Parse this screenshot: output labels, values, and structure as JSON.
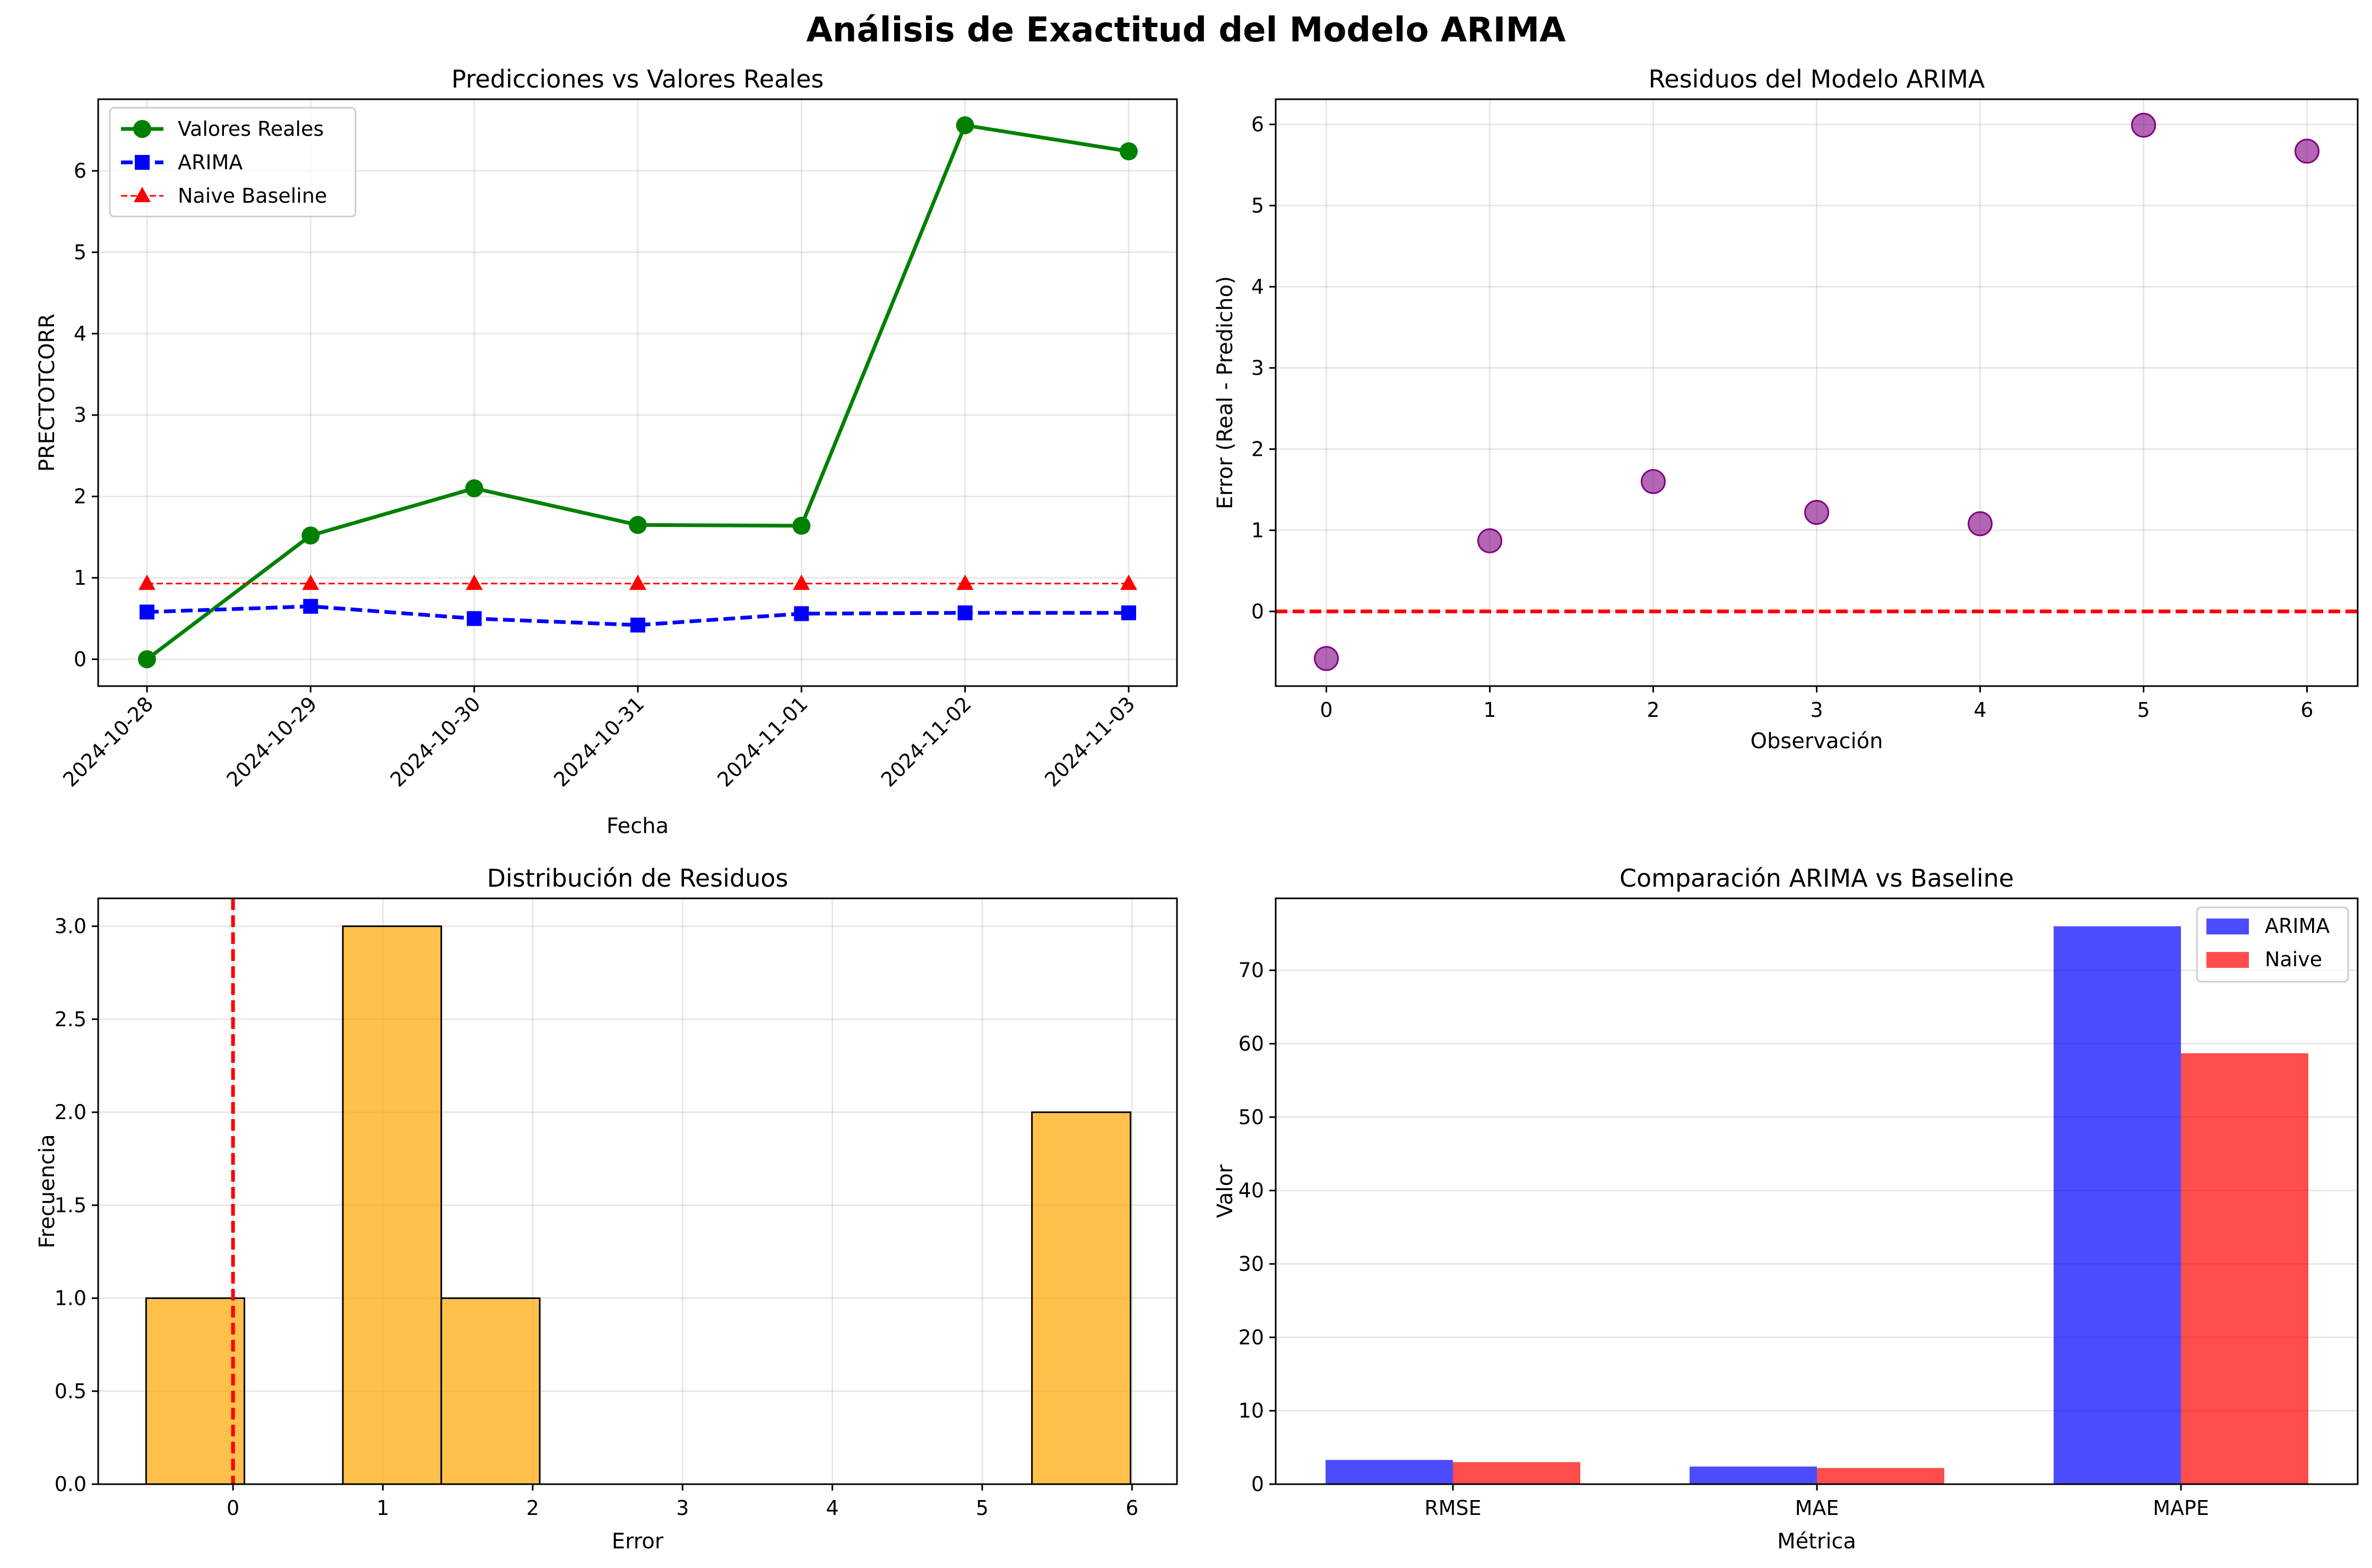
{
  "figure": {
    "title": "Análisis de Exactitud del Modelo ARIMA"
  },
  "chart_data": [
    {
      "type": "line",
      "title": "Predicciones vs Valores Reales",
      "xlabel": "Fecha",
      "ylabel": "PRECTOTCORR",
      "categories": [
        "2024-10-28",
        "2024-10-29",
        "2024-10-30",
        "2024-10-31",
        "2024-11-01",
        "2024-11-02",
        "2024-11-03"
      ],
      "ylim": [
        -0.33,
        6.88
      ],
      "yticks": [
        0,
        1,
        2,
        3,
        4,
        5,
        6
      ],
      "grid": true,
      "legend": "upper-left",
      "series": [
        {
          "name": "Valores Reales",
          "values": [
            0.0,
            1.52,
            2.1,
            1.65,
            1.64,
            6.56,
            6.24
          ],
          "color": "#008000",
          "marker": "circle",
          "dash": "solid"
        },
        {
          "name": "ARIMA",
          "values": [
            0.58,
            0.65,
            0.5,
            0.42,
            0.56,
            0.57,
            0.57
          ],
          "color": "#0000ff",
          "marker": "square",
          "dash": "dashed"
        },
        {
          "name": "Naive Baseline",
          "values": [
            0.93,
            0.93,
            0.93,
            0.93,
            0.93,
            0.93,
            0.93
          ],
          "color": "#ff0000",
          "marker": "triangle",
          "dash": "dashed-thin"
        }
      ]
    },
    {
      "type": "scatter",
      "title": "Residuos del Modelo ARIMA",
      "xlabel": "Observación",
      "ylabel": "Error (Real - Predicho)",
      "xlim": [
        -0.31,
        6.31
      ],
      "ylim": [
        -0.92,
        6.31
      ],
      "xticks": [
        0,
        1,
        2,
        3,
        4,
        5,
        6
      ],
      "yticks": [
        0,
        1,
        2,
        3,
        4,
        5,
        6
      ],
      "grid": true,
      "points": {
        "x": [
          0,
          1,
          2,
          3,
          4,
          5,
          6
        ],
        "y": [
          -0.58,
          0.87,
          1.6,
          1.22,
          1.08,
          5.99,
          5.67
        ],
        "color": "#800080"
      },
      "reference_line": {
        "y": 0,
        "color": "#ff0000",
        "style": "dashed"
      }
    },
    {
      "type": "histogram",
      "title": "Distribución de Residuos",
      "xlabel": "Error",
      "ylabel": "Frecuencia",
      "xlim": [
        -0.9,
        6.3
      ],
      "ylim": [
        0,
        3.15
      ],
      "xticks": [
        0,
        1,
        2,
        3,
        4,
        5,
        6
      ],
      "yticks": [
        0.0,
        0.5,
        1.0,
        1.5,
        2.0,
        2.5,
        3.0
      ],
      "grid": true,
      "bins": [
        {
          "start": -0.58,
          "end": 0.076,
          "count": 1
        },
        {
          "start": 0.076,
          "end": 0.733,
          "count": 0
        },
        {
          "start": 0.733,
          "end": 1.39,
          "count": 3
        },
        {
          "start": 1.39,
          "end": 2.047,
          "count": 1
        },
        {
          "start": 2.047,
          "end": 2.704,
          "count": 0
        },
        {
          "start": 2.704,
          "end": 3.361,
          "count": 0
        },
        {
          "start": 3.361,
          "end": 4.018,
          "count": 0
        },
        {
          "start": 4.018,
          "end": 4.675,
          "count": 0
        },
        {
          "start": 4.675,
          "end": 5.332,
          "count": 0
        },
        {
          "start": 5.332,
          "end": 5.99,
          "count": 2
        }
      ],
      "bar_color": "#ffa500",
      "reference_line": {
        "x": 0,
        "color": "#ff0000",
        "style": "dashed"
      }
    },
    {
      "type": "bar",
      "title": "Comparación ARIMA vs Baseline",
      "xlabel": "Métrica",
      "ylabel": "Valor",
      "categories": [
        "RMSE",
        "MAE",
        "MAPE"
      ],
      "ylim": [
        0,
        79.8
      ],
      "yticks": [
        0,
        10,
        20,
        30,
        40,
        50,
        60,
        70
      ],
      "grid": true,
      "legend": "upper-right",
      "series": [
        {
          "name": "ARIMA",
          "values": [
            3.3,
            2.4,
            76.0
          ],
          "color": "#0000ff"
        },
        {
          "name": "Naive",
          "values": [
            3.0,
            2.2,
            58.7
          ],
          "color": "#ff0000"
        }
      ]
    }
  ]
}
